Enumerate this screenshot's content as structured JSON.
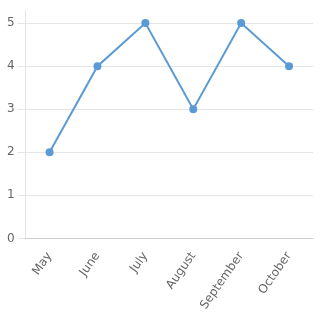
{
  "chart_data": {
    "type": "line",
    "categories": [
      "May",
      "June",
      "July",
      "August",
      "September",
      "October"
    ],
    "values": [
      2,
      4,
      5,
      3,
      5,
      4
    ],
    "color": "#5b9bd5",
    "marker": "circle",
    "ylim": [
      0,
      5.3
    ],
    "yticks": [
      0,
      1,
      2,
      3,
      4,
      5
    ],
    "grid": true
  }
}
